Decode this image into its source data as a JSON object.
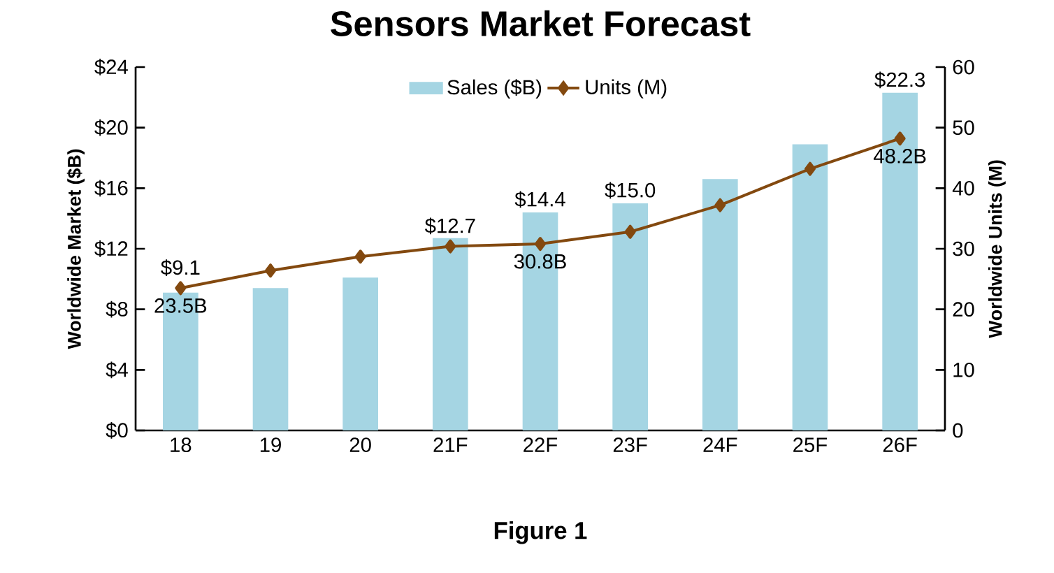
{
  "chart_data": {
    "type": "bar",
    "title": "Sensors Market Forecast",
    "categories": [
      "18",
      "19",
      "20",
      "21F",
      "22F",
      "23F",
      "24F",
      "25F",
      "26F"
    ],
    "series": [
      {
        "name": "Sales ($B)",
        "color": "#a5d5e3",
        "values": [
          9.1,
          9.4,
          10.1,
          12.7,
          14.4,
          15.0,
          16.6,
          18.9,
          22.3
        ],
        "value_labels": [
          "$9.1",
          null,
          null,
          "$12.7",
          "$14.4",
          "$15.0",
          null,
          null,
          "$22.3"
        ]
      },
      {
        "name": "Units (M)",
        "type": "line",
        "axis": "y2",
        "marker": "diamond",
        "color": "#83490f",
        "values": [
          23.5,
          26.4,
          28.7,
          30.4,
          30.8,
          32.8,
          37.2,
          43.2,
          48.2
        ],
        "value_labels": [
          "23.5B",
          null,
          null,
          null,
          "30.8B",
          null,
          null,
          null,
          "48.2B"
        ]
      }
    ],
    "ylabel": "Worldwide Market ($B)",
    "y2label": "Worldwide Units (M)",
    "ylim": [
      0,
      24
    ],
    "yticks": [
      {
        "value": 0,
        "label": "$0"
      },
      {
        "value": 4,
        "label": "$4"
      },
      {
        "value": 8,
        "label": "$8"
      },
      {
        "value": 12,
        "label": "$12"
      },
      {
        "value": 16,
        "label": "$16"
      },
      {
        "value": 20,
        "label": "$20"
      },
      {
        "value": 24,
        "label": "$24"
      }
    ],
    "y2lim": [
      0,
      60
    ],
    "y2ticks": [
      0,
      10,
      20,
      30,
      40,
      50,
      60
    ],
    "legend": "top",
    "grid": false,
    "annotations": [
      "Figure 1"
    ]
  }
}
